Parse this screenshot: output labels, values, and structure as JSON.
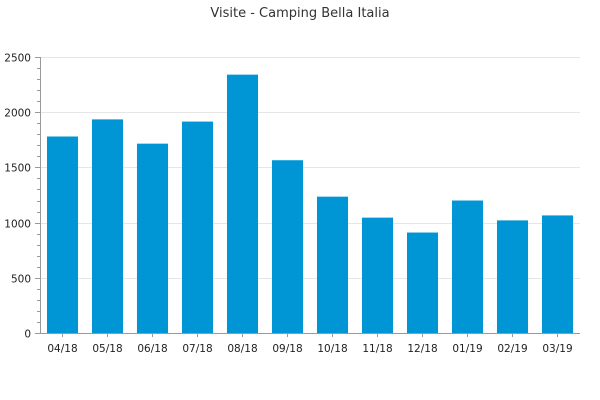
{
  "chart_data": {
    "type": "bar",
    "title": "Visite - Camping Bella Italia",
    "xlabel": "",
    "ylabel": "",
    "categories": [
      "04/18",
      "05/18",
      "06/18",
      "07/18",
      "08/18",
      "09/18",
      "10/18",
      "11/18",
      "12/18",
      "01/19",
      "02/19",
      "03/19"
    ],
    "values": [
      1780,
      1935,
      1715,
      1915,
      2340,
      1565,
      1235,
      1045,
      910,
      1200,
      1020,
      1065
    ],
    "ylim": [
      0,
      2500
    ],
    "yticks": [
      0,
      500,
      1000,
      1500,
      2000,
      2500
    ],
    "grid": true,
    "legend": "none",
    "bar_color": "#0096d6"
  }
}
